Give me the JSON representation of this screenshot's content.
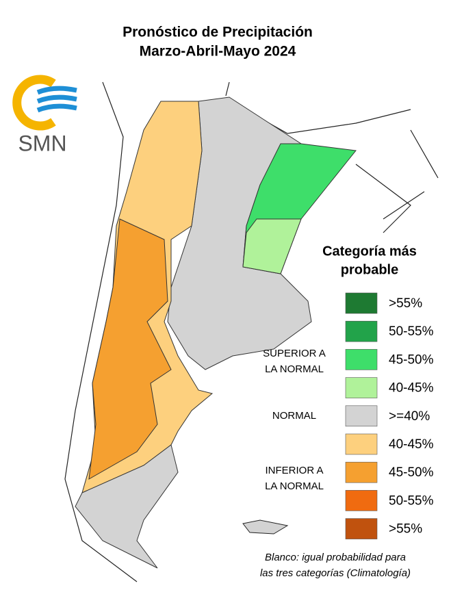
{
  "header": {
    "title": "Pronóstico de Precipitación",
    "subtitle": "Marzo-Abril-Mayo 2024"
  },
  "logo": {
    "text": "SMN"
  },
  "legend": {
    "title": [
      "Categoría más",
      "probable"
    ],
    "items": [
      {
        "label": ">55%",
        "color": "#1e7a32"
      },
      {
        "label": "50-55%",
        "color": "#22a34a"
      },
      {
        "label": "45-50%",
        "color": "#3ede6a"
      },
      {
        "label": "40-45%",
        "color": "#b0f29a"
      },
      {
        "label": ">=40%",
        "color": "#d3d3d3"
      },
      {
        "label": "40-45%",
        "color": "#fdd07e"
      },
      {
        "label": "45-50%",
        "color": "#f5a030"
      },
      {
        "label": "50-55%",
        "color": "#f06b10"
      },
      {
        "label": ">55%",
        "color": "#c0520e"
      }
    ],
    "groups": [
      {
        "label": [
          "SUPERIOR A",
          "LA NORMAL"
        ]
      },
      {
        "label": [
          "NORMAL"
        ]
      },
      {
        "label": [
          "INFERIOR A",
          "LA NORMAL"
        ]
      }
    ]
  },
  "footnote": [
    "Blanco: igual probabilidad para",
    "las tres categorías (Climatología)"
  ]
}
